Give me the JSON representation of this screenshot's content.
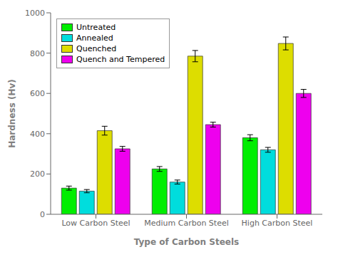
{
  "chart_data": {
    "type": "bar",
    "categories": [
      "Low Carbon Steel",
      "Medium Carbon Steel",
      "High Carbon Steel"
    ],
    "series": [
      {
        "name": "Untreated",
        "color": "#00ee00",
        "values": [
          130,
          225,
          380
        ],
        "errors": [
          10,
          12,
          15
        ]
      },
      {
        "name": "Annealed",
        "color": "#00dddd",
        "values": [
          115,
          160,
          320
        ],
        "errors": [
          8,
          10,
          12
        ]
      },
      {
        "name": "Quenched",
        "color": "#dddd00",
        "values": [
          415,
          785,
          848
        ],
        "errors": [
          22,
          28,
          32
        ]
      },
      {
        "name": "Quench and Tempered",
        "color": "#ee00ee",
        "values": [
          325,
          445,
          600
        ],
        "errors": [
          12,
          12,
          20
        ]
      }
    ],
    "xlabel": "Type of Carbon Steels",
    "ylabel": "Hardness (Hv)",
    "ylim": [
      0,
      1000
    ],
    "yticks": [
      0,
      200,
      400,
      600,
      800,
      1000
    ],
    "grid": false,
    "legend": "upper left"
  }
}
